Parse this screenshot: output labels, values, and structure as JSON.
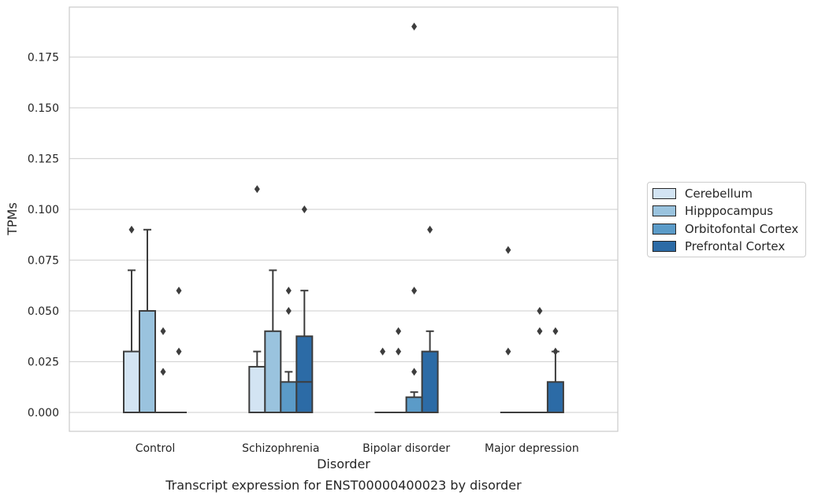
{
  "chart_data": {
    "type": "boxplot",
    "title": "Transcript expression for ENST00000400023 by disorder",
    "xlabel": "Disorder",
    "ylabel": "TPMs",
    "ylim": [
      -0.009,
      0.198
    ],
    "yticks": [
      "0.000",
      "0.025",
      "0.050",
      "0.075",
      "0.100",
      "0.125",
      "0.150",
      "0.175"
    ],
    "grid": true,
    "legend_position": "right",
    "categories": [
      "Control",
      "Schizophrenia",
      "Bipolar disorder",
      "Major depression"
    ],
    "series": [
      {
        "name": "Cerebellum",
        "color": "#d3e4f3",
        "boxes": [
          {
            "q1": 0,
            "median": 0,
            "q3": 0.03,
            "whisker_low": 0,
            "whisker_high": 0.07,
            "outliers": [
              0.09
            ]
          },
          {
            "q1": 0,
            "median": 0,
            "q3": 0.0225,
            "whisker_low": 0,
            "whisker_high": 0.03,
            "outliers": [
              0.11
            ]
          },
          {
            "q1": 0,
            "median": 0,
            "q3": 0,
            "whisker_low": 0,
            "whisker_high": 0,
            "outliers": [
              0.03
            ]
          },
          {
            "q1": 0,
            "median": 0,
            "q3": 0,
            "whisker_low": 0,
            "whisker_high": 0,
            "outliers": [
              0.03,
              0.08
            ]
          }
        ]
      },
      {
        "name": "Hipppocampus",
        "color": "#9ac3de",
        "boxes": [
          {
            "q1": 0,
            "median": 0,
            "q3": 0.05,
            "whisker_low": 0,
            "whisker_high": 0.09,
            "outliers": []
          },
          {
            "q1": 0,
            "median": 0,
            "q3": 0.04,
            "whisker_low": 0,
            "whisker_high": 0.07,
            "outliers": []
          },
          {
            "q1": 0,
            "median": 0,
            "q3": 0,
            "whisker_low": 0,
            "whisker_high": 0,
            "outliers": [
              0.03,
              0.04
            ]
          },
          {
            "q1": 0,
            "median": 0,
            "q3": 0,
            "whisker_low": 0,
            "whisker_high": 0,
            "outliers": []
          }
        ]
      },
      {
        "name": "Orbitofontal Cortex",
        "color": "#5b9bc8",
        "boxes": [
          {
            "q1": 0,
            "median": 0,
            "q3": 0,
            "whisker_low": 0,
            "whisker_high": 0,
            "outliers": [
              0.02,
              0.04
            ]
          },
          {
            "q1": 0,
            "median": 0,
            "q3": 0.015,
            "whisker_low": 0,
            "whisker_high": 0.02,
            "outliers": [
              0.05,
              0.06
            ]
          },
          {
            "q1": 0,
            "median": 0,
            "q3": 0.0075,
            "whisker_low": 0,
            "whisker_high": 0.01,
            "outliers": [
              0.02,
              0.06,
              0.19
            ]
          },
          {
            "q1": 0,
            "median": 0,
            "q3": 0,
            "whisker_low": 0,
            "whisker_high": 0,
            "outliers": [
              0.04,
              0.05
            ]
          }
        ]
      },
      {
        "name": "Prefrontal Cortex",
        "color": "#2c6ba6",
        "boxes": [
          {
            "q1": 0,
            "median": 0,
            "q3": 0,
            "whisker_low": 0,
            "whisker_high": 0,
            "outliers": [
              0.03,
              0.06
            ]
          },
          {
            "q1": 0,
            "median": 0.015,
            "q3": 0.0375,
            "whisker_low": 0,
            "whisker_high": 0.06,
            "outliers": [
              0.1
            ]
          },
          {
            "q1": 0,
            "median": 0,
            "q3": 0.03,
            "whisker_low": 0,
            "whisker_high": 0.04,
            "outliers": [
              0.09
            ]
          },
          {
            "q1": 0,
            "median": 0,
            "q3": 0.015,
            "whisker_low": 0,
            "whisker_high": 0.03,
            "outliers": [
              0.03,
              0.04
            ]
          }
        ]
      }
    ]
  }
}
